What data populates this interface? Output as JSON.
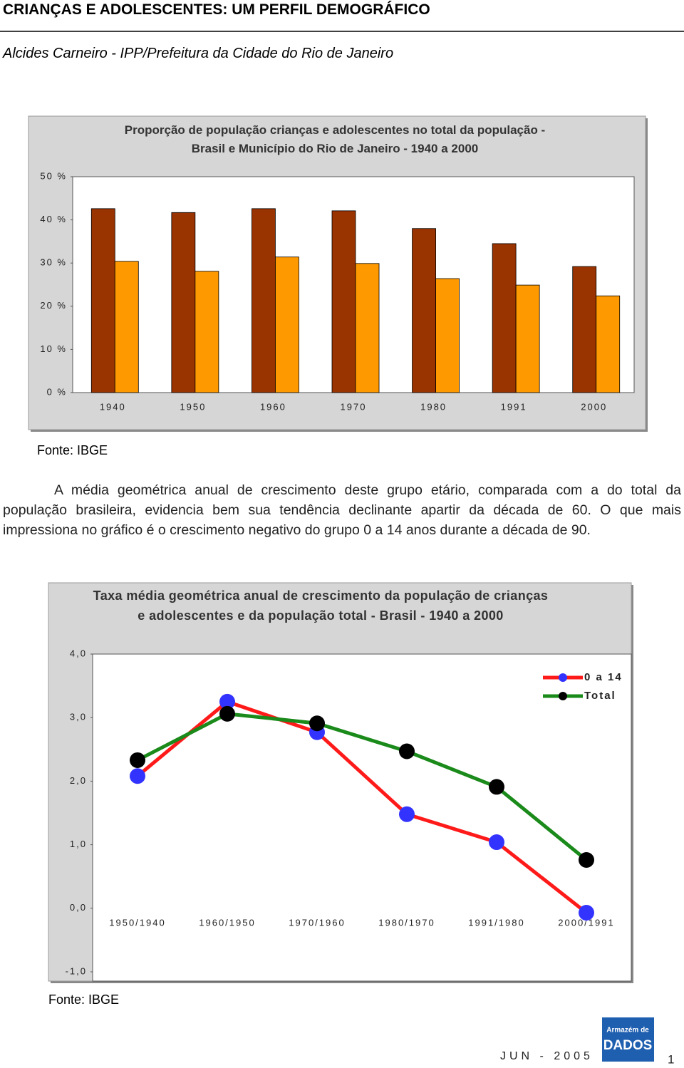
{
  "header": {
    "title": "CRIANÇAS E ADOLESCENTES: UM PERFIL DEMOGRÁFICO",
    "author": "Alcides Carneiro - IPP/Prefeitura da Cidade do Rio de Janeiro"
  },
  "chart_data": [
    {
      "type": "bar",
      "title": "Proporção de população crianças e adolescentes no total da população - Brasil e Município do Rio de Janeiro - 1940 a 2000",
      "categories": [
        "1940",
        "1950",
        "1960",
        "1970",
        "1980",
        "1991",
        "2000"
      ],
      "series": [
        {
          "color": "#993300",
          "values": [
            42.6,
            41.7,
            42.6,
            42.1,
            38.0,
            34.5,
            29.2
          ]
        },
        {
          "color": "#ff9900",
          "values": [
            30.4,
            28.1,
            31.4,
            29.9,
            26.4,
            24.9,
            22.4
          ]
        }
      ],
      "ylim": [
        0,
        50
      ],
      "yticks": [
        {
          "value": 0,
          "label": "0 %"
        },
        {
          "value": 10,
          "label": "10 %"
        },
        {
          "value": 20,
          "label": "20 %"
        },
        {
          "value": 30,
          "label": "30 %"
        },
        {
          "value": 40,
          "label": "40 %"
        },
        {
          "value": 50,
          "label": "50 %"
        }
      ]
    },
    {
      "type": "line",
      "title": "Taxa média geométrica anual de crescimento da população de crianças e adolescentes e da população total - Brasil - 1940 a 2000",
      "categories": [
        "1950/1940",
        "1960/1950",
        "1970/1960",
        "1980/1970",
        "1991/1980",
        "2000/1991"
      ],
      "series": [
        {
          "name": "0 a 14",
          "color": "#ff1a1a",
          "marker_color": "#3333ff",
          "values": [
            2.08,
            3.25,
            2.77,
            1.48,
            1.04,
            -0.07
          ]
        },
        {
          "name": "Total",
          "color": "#1a8a1a",
          "marker_color": "#000000",
          "values": [
            2.33,
            3.06,
            2.91,
            2.47,
            1.91,
            0.76
          ]
        }
      ],
      "ylim": [
        -1,
        4
      ],
      "yticks": [
        {
          "value": -1,
          "label": "-1,0"
        },
        {
          "value": 0,
          "label": "0,0"
        },
        {
          "value": 1,
          "label": "1,0"
        },
        {
          "value": 2,
          "label": "2,0"
        },
        {
          "value": 3,
          "label": "3,0"
        },
        {
          "value": 4,
          "label": "4,0"
        }
      ],
      "legend": "top-right"
    }
  ],
  "sources": [
    "Fonte: IBGE",
    "Fonte: IBGE"
  ],
  "paragraph": "A média geométrica anual de crescimento deste grupo etário, comparada com a do total da população brasileira, evidencia bem sua tendência declinante apartir da década de 60. O que mais impressiona no gráfico é o crescimento negativo do grupo 0 a 14 anos durante a década de 90.",
  "footer": {
    "date": "JUN - 2005",
    "page": "1",
    "logo_top": "Armazém de",
    "logo_bottom": "DADOS"
  }
}
